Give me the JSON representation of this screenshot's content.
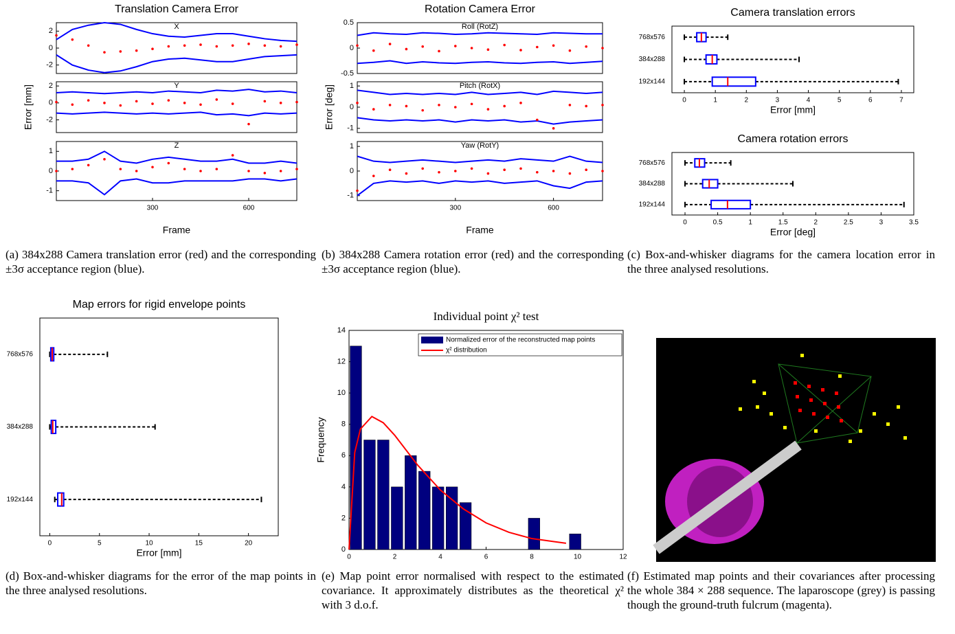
{
  "chart_data": [
    {
      "type": "line",
      "title": "Translation Camera Error",
      "subtitle": "X",
      "x": [
        0,
        50,
        100,
        150,
        200,
        250,
        300,
        350,
        400,
        450,
        500,
        550,
        600,
        650,
        700,
        750
      ],
      "xlim": [
        0,
        750
      ],
      "ylim": [
        -3,
        3
      ],
      "yticks": [
        -2,
        0,
        2
      ],
      "series": [
        {
          "color": "#0000ff",
          "style": "line",
          "values": [
            1.0,
            2.2,
            2.7,
            3.0,
            2.8,
            2.2,
            1.7,
            1.4,
            1.3,
            1.5,
            1.7,
            1.7,
            1.4,
            1.1,
            0.9,
            0.8
          ]
        },
        {
          "color": "#0000ff",
          "style": "line",
          "values": [
            -0.8,
            -2.0,
            -2.6,
            -2.9,
            -2.7,
            -2.2,
            -1.6,
            -1.3,
            -1.2,
            -1.4,
            -1.6,
            -1.6,
            -1.3,
            -1.0,
            -0.9,
            -0.8
          ]
        },
        {
          "color": "#ff0000",
          "style": "points",
          "values": [
            1.5,
            1.0,
            0.3,
            -0.5,
            -0.4,
            -0.3,
            -0.1,
            0.2,
            0.3,
            0.4,
            0.2,
            0.3,
            0.5,
            0.3,
            0.2,
            0.4
          ]
        }
      ]
    },
    {
      "type": "line",
      "subtitle": "Y",
      "ylabel": "Error [mm]",
      "x": [
        0,
        50,
        100,
        150,
        200,
        250,
        300,
        350,
        400,
        450,
        500,
        550,
        600,
        650,
        700,
        750
      ],
      "xlim": [
        0,
        750
      ],
      "ylim": [
        -3.5,
        2.5
      ],
      "yticks": [
        -2,
        0,
        2
      ],
      "series": [
        {
          "color": "#0000ff",
          "style": "line",
          "values": [
            1.2,
            1.3,
            1.2,
            1.1,
            1.2,
            1.3,
            1.2,
            1.4,
            1.3,
            1.2,
            1.5,
            1.4,
            1.6,
            1.3,
            1.4,
            1.2
          ]
        },
        {
          "color": "#0000ff",
          "style": "line",
          "values": [
            -1.2,
            -1.3,
            -1.2,
            -1.1,
            -1.2,
            -1.3,
            -1.2,
            -1.3,
            -1.2,
            -1.1,
            -1.4,
            -1.3,
            -1.5,
            -1.2,
            -1.3,
            -1.2
          ]
        },
        {
          "color": "#ff0000",
          "style": "points",
          "values": [
            0.1,
            -0.2,
            0.3,
            0,
            -0.3,
            0.2,
            -0.1,
            0.3,
            0,
            -0.2,
            0.4,
            -0.1,
            -2.5,
            0.2,
            0,
            0.1
          ]
        }
      ]
    },
    {
      "type": "line",
      "subtitle": "Z",
      "xlabel": "Frame",
      "x": [
        0,
        50,
        100,
        150,
        200,
        250,
        300,
        350,
        400,
        450,
        500,
        550,
        600,
        650,
        700,
        750
      ],
      "xlim": [
        0,
        750
      ],
      "ylim": [
        -1.5,
        1.5
      ],
      "yticks": [
        -1,
        0,
        1
      ],
      "xticks": [
        300,
        600
      ],
      "series": [
        {
          "color": "#0000ff",
          "style": "line",
          "values": [
            0.5,
            0.5,
            0.6,
            1.0,
            0.5,
            0.4,
            0.6,
            0.7,
            0.6,
            0.5,
            0.5,
            0.6,
            0.4,
            0.4,
            0.5,
            0.4
          ]
        },
        {
          "color": "#0000ff",
          "style": "line",
          "values": [
            -0.5,
            -0.5,
            -0.6,
            -1.2,
            -0.5,
            -0.4,
            -0.6,
            -0.6,
            -0.5,
            -0.5,
            -0.5,
            -0.5,
            -0.4,
            -0.4,
            -0.5,
            -0.4
          ]
        },
        {
          "color": "#ff0000",
          "style": "points",
          "values": [
            0,
            0.1,
            0.3,
            0.6,
            0.1,
            0,
            0.2,
            0.4,
            0.1,
            0,
            0.1,
            0.8,
            0,
            -0.1,
            0,
            0.1
          ]
        }
      ]
    },
    {
      "type": "line",
      "title": "Rotation Camera Error",
      "subtitle": "Roll (RotZ)",
      "x": [
        0,
        50,
        100,
        150,
        200,
        250,
        300,
        350,
        400,
        450,
        500,
        550,
        600,
        650,
        700,
        750
      ],
      "xlim": [
        0,
        750
      ],
      "ylim": [
        -0.5,
        0.5
      ],
      "yticks": [
        -0.5,
        0,
        0.5
      ],
      "series": [
        {
          "color": "#0000ff",
          "style": "line",
          "values": [
            0.25,
            0.3,
            0.28,
            0.27,
            0.3,
            0.29,
            0.27,
            0.28,
            0.3,
            0.29,
            0.28,
            0.27,
            0.3,
            0.29,
            0.28,
            0.28
          ]
        },
        {
          "color": "#0000ff",
          "style": "line",
          "values": [
            -0.3,
            -0.28,
            -0.25,
            -0.3,
            -0.27,
            -0.29,
            -0.3,
            -0.28,
            -0.27,
            -0.29,
            -0.3,
            -0.28,
            -0.27,
            -0.3,
            -0.28,
            -0.26
          ]
        },
        {
          "color": "#ff0000",
          "style": "points",
          "values": [
            0.05,
            -0.05,
            0.08,
            -0.02,
            0.03,
            -0.06,
            0.04,
            0.0,
            -0.03,
            0.06,
            -0.04,
            0.02,
            0.05,
            -0.05,
            0.03,
            0.0
          ]
        }
      ]
    },
    {
      "type": "line",
      "subtitle": "Pitch (RotX)",
      "ylabel": "Error [deg]",
      "x": [
        0,
        50,
        100,
        150,
        200,
        250,
        300,
        350,
        400,
        450,
        500,
        550,
        600,
        650,
        700,
        750
      ],
      "xlim": [
        0,
        750
      ],
      "ylim": [
        -1.2,
        1.2
      ],
      "yticks": [
        -1,
        0,
        1
      ],
      "series": [
        {
          "color": "#0000ff",
          "style": "line",
          "values": [
            0.8,
            0.7,
            0.6,
            0.65,
            0.6,
            0.65,
            0.6,
            0.7,
            0.6,
            0.65,
            0.7,
            0.6,
            0.75,
            0.7,
            0.65,
            0.7
          ]
        },
        {
          "color": "#0000ff",
          "style": "line",
          "values": [
            -0.5,
            -0.6,
            -0.65,
            -0.6,
            -0.65,
            -0.6,
            -0.7,
            -0.6,
            -0.65,
            -0.6,
            -0.7,
            -0.65,
            -0.8,
            -0.7,
            -0.65,
            -0.6
          ]
        },
        {
          "color": "#ff0000",
          "style": "points",
          "values": [
            0.2,
            -0.1,
            0.1,
            0.05,
            -0.15,
            0.1,
            0,
            0.15,
            -0.1,
            0.05,
            0.2,
            -0.6,
            -1.0,
            0.1,
            0.05,
            0.1
          ]
        }
      ]
    },
    {
      "type": "line",
      "subtitle": "Yaw (RotY)",
      "xlabel": "Frame",
      "x": [
        0,
        50,
        100,
        150,
        200,
        250,
        300,
        350,
        400,
        450,
        500,
        550,
        600,
        650,
        700,
        750
      ],
      "xlim": [
        0,
        750
      ],
      "ylim": [
        -1.2,
        1.2
      ],
      "yticks": [
        -1,
        0,
        1
      ],
      "xticks": [
        300,
        600
      ],
      "series": [
        {
          "color": "#0000ff",
          "style": "line",
          "values": [
            0.6,
            0.4,
            0.35,
            0.4,
            0.45,
            0.4,
            0.35,
            0.4,
            0.45,
            0.4,
            0.5,
            0.45,
            0.4,
            0.6,
            0.4,
            0.35
          ]
        },
        {
          "color": "#0000ff",
          "style": "line",
          "values": [
            -1.0,
            -0.5,
            -0.4,
            -0.45,
            -0.4,
            -0.5,
            -0.4,
            -0.45,
            -0.4,
            -0.5,
            -0.45,
            -0.4,
            -0.6,
            -0.7,
            -0.45,
            -0.4
          ]
        },
        {
          "color": "#ff0000",
          "style": "points",
          "values": [
            -0.8,
            -0.2,
            0.05,
            -0.1,
            0.1,
            -0.05,
            0,
            0.1,
            -0.1,
            0.05,
            0.1,
            -0.05,
            0,
            -0.1,
            0.05,
            0
          ]
        }
      ]
    },
    {
      "type": "box",
      "title": "Camera translation errors",
      "xlabel": "Error [mm]",
      "categories": [
        "768x576",
        "384x288",
        "192x144"
      ],
      "min": [
        0,
        0,
        0
      ],
      "q1": [
        0.4,
        0.7,
        0.9
      ],
      "median": [
        0.55,
        0.9,
        1.4
      ],
      "q3": [
        0.7,
        1.05,
        2.3
      ],
      "max": [
        1.4,
        3.7,
        6.9
      ],
      "xlim": [
        -0.4,
        7.4
      ],
      "xticks": [
        0,
        1,
        2,
        3,
        4,
        5,
        6,
        7
      ],
      "box_color": "#0000ff",
      "median_color": "#ff0000"
    },
    {
      "type": "box",
      "title": "Camera rotation errors",
      "xlabel": "Error [deg]",
      "categories": [
        "768x576",
        "384x288",
        "192x144"
      ],
      "min": [
        0,
        0,
        0
      ],
      "q1": [
        0.15,
        0.27,
        0.4
      ],
      "median": [
        0.22,
        0.37,
        0.65
      ],
      "q3": [
        0.3,
        0.5,
        1.0
      ],
      "max": [
        0.7,
        1.65,
        3.35
      ],
      "xlim": [
        -0.2,
        3.5
      ],
      "xticks": [
        0,
        0.5,
        1,
        1.5,
        2,
        2.5,
        3,
        3.5
      ],
      "box_color": "#0000ff",
      "median_color": "#ff0000"
    },
    {
      "type": "box",
      "title": "Map errors for rigid envelope points",
      "xlabel": "Error [mm]",
      "categories": [
        "768x576",
        "384x288",
        "192x144"
      ],
      "min": [
        0,
        0,
        0.5
      ],
      "q1": [
        0.1,
        0.15,
        0.8
      ],
      "median": [
        0.25,
        0.3,
        1.2
      ],
      "q3": [
        0.4,
        0.6,
        1.4
      ],
      "max": [
        5.8,
        10.6,
        21.3
      ],
      "xlim": [
        -1,
        23
      ],
      "xticks": [
        0,
        5,
        10,
        15,
        20
      ],
      "box_color": "#0000ff",
      "median_color": "#ff0000"
    },
    {
      "type": "histogram",
      "title": "Individual point χ² test",
      "ylabel": "Frequency",
      "name": "Normalized error of the reconstructed map points",
      "color": "#00007f",
      "bins": [
        0,
        0.6,
        1.2,
        1.8,
        2.4,
        3,
        3.6,
        4.2,
        4.8,
        5.4,
        6,
        6.6,
        7.2,
        7.8,
        8.4,
        9,
        9.6,
        10.2
      ],
      "counts": [
        13,
        7,
        7,
        4,
        6,
        5,
        4,
        4,
        3,
        0,
        0,
        0,
        0,
        2,
        0,
        0,
        1
      ],
      "curve": {
        "name": "χ² distribution",
        "color": "#ff0000",
        "x": [
          0,
          0.25,
          0.5,
          1,
          1.5,
          2,
          3,
          4,
          5,
          6,
          7,
          8,
          9,
          9.5
        ],
        "values": [
          0,
          6.2,
          7.7,
          8.5,
          8.1,
          7.3,
          5.4,
          3.8,
          2.6,
          1.7,
          1.1,
          0.7,
          0.5,
          0.4
        ]
      },
      "xlim": [
        0,
        12
      ],
      "xticks": [
        0,
        2,
        4,
        6,
        8,
        10,
        12
      ],
      "ylim": [
        0,
        14
      ],
      "yticks": [
        0,
        2,
        4,
        6,
        8,
        10,
        12,
        14
      ],
      "legend": "upper right"
    }
  ],
  "captions": [
    "(a) 384x288 Camera translation error (red) and the corresponding ±3σ acceptance region (blue).",
    "(b) 384x288 Camera rotation error (red) and the corresponding ±3σ acceptance region (blue).",
    "(c) Box-and-whisker diagrams for the camera location error in the three analysed resolutions.",
    "(d) Box-and-whisker diagrams for the error of the map points in the three analysed resolutions.",
    "(e) Map point error normalised with respect to the estimated covariance. It approximately distributes as the theoretical χ² with 3 d.o.f.",
    "(f) Estimated map points and their covariances after processing the whole 384 × 288 sequence. The laparoscope (grey) is passing though the ground-truth fulcrum (magenta)."
  ]
}
